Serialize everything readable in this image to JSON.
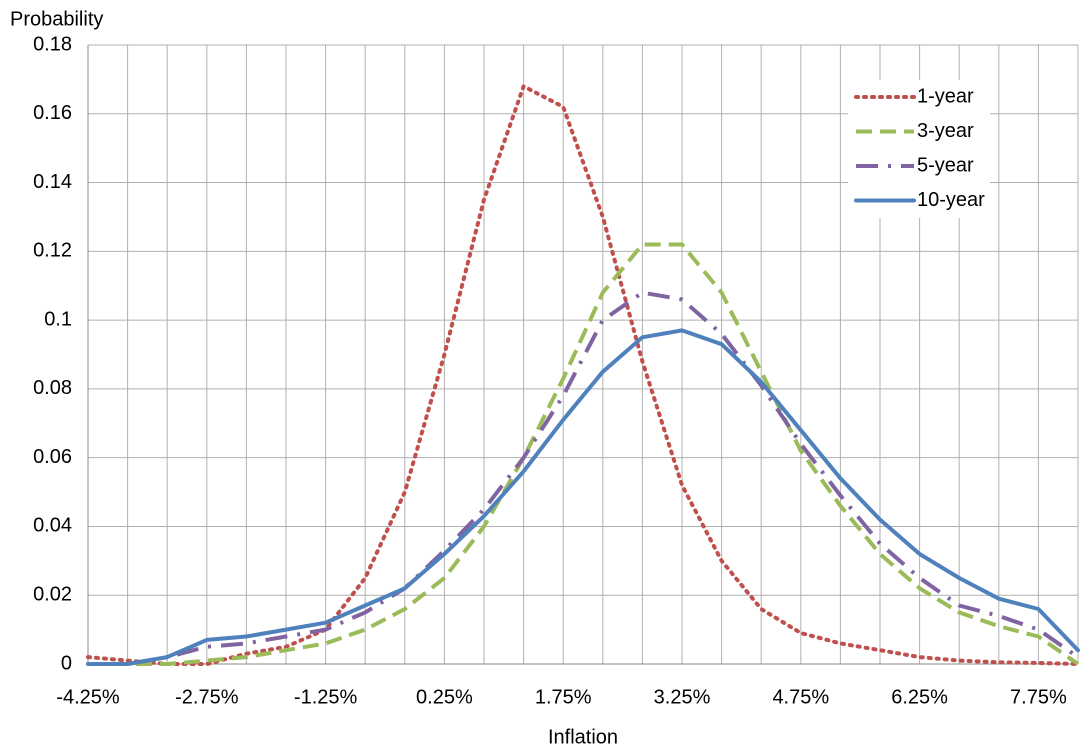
{
  "chart_data": {
    "type": "line",
    "y_label": "Probability",
    "x_label": "Inflation",
    "categories": [
      "-4.25%",
      null,
      null,
      "-2.75%",
      null,
      null,
      "-1.25%",
      null,
      null,
      "0.25%",
      null,
      null,
      "1.75%",
      null,
      null,
      "3.25%",
      null,
      null,
      "4.75%",
      null,
      null,
      "6.25%",
      null,
      null,
      "7.75%",
      null
    ],
    "ylim": [
      0,
      0.18
    ],
    "yticks": [
      0,
      0.02,
      0.04,
      0.06,
      0.08,
      0.1,
      0.12,
      0.14,
      0.16,
      0.18
    ],
    "grid": true,
    "legend": "upper right",
    "series": [
      {
        "name": "1-year",
        "color": "#c0504d",
        "style": "dotted",
        "values": [
          0.002,
          0.001,
          0,
          0,
          0.003,
          0.005,
          0.01,
          0.025,
          0.05,
          0.09,
          0.135,
          0.168,
          0.162,
          0.13,
          0.088,
          0.052,
          0.03,
          0.016,
          0.009,
          0.006,
          0.004,
          0.002,
          0.001,
          0.0005,
          0.0003,
          0
        ]
      },
      {
        "name": "3-year",
        "color": "#9bbb59",
        "style": "dashed",
        "values": [
          0,
          0,
          0,
          0.001,
          0.002,
          0.004,
          0.006,
          0.01,
          0.016,
          0.025,
          0.04,
          0.06,
          0.083,
          0.108,
          0.122,
          0.122,
          0.108,
          0.085,
          0.062,
          0.046,
          0.032,
          0.022,
          0.015,
          0.011,
          0.008,
          0
        ]
      },
      {
        "name": "5-year",
        "color": "#8064a2",
        "style": "dashdot",
        "values": [
          0,
          0,
          0.002,
          0.005,
          0.006,
          0.008,
          0.01,
          0.015,
          0.022,
          0.033,
          0.045,
          0.06,
          0.078,
          0.1,
          0.108,
          0.106,
          0.096,
          0.081,
          0.064,
          0.049,
          0.035,
          0.025,
          0.017,
          0.014,
          0.01,
          0.002
        ]
      },
      {
        "name": "10-year",
        "color": "#4f81bd",
        "style": "solid",
        "values": [
          0,
          0,
          0.002,
          0.007,
          0.008,
          0.01,
          0.012,
          0.017,
          0.022,
          0.032,
          0.043,
          0.056,
          0.071,
          0.085,
          0.095,
          0.097,
          0.093,
          0.082,
          0.068,
          0.054,
          0.042,
          0.032,
          0.025,
          0.019,
          0.016,
          0.004
        ]
      }
    ]
  }
}
